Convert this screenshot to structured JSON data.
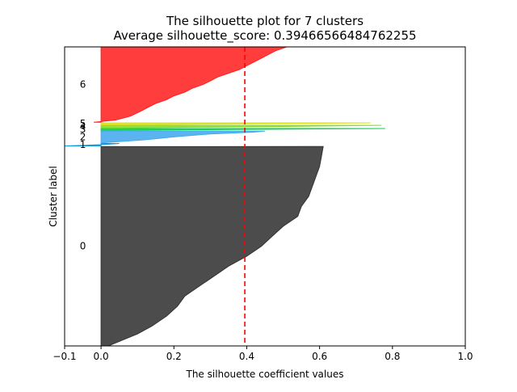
{
  "chart_data": {
    "type": "area",
    "title": "The silhouette plot for 7 clusters",
    "subtitle": "Average silhouette_score: 0.39466566484762255",
    "xlabel": "The silhouette coefficient values",
    "ylabel": "Cluster label",
    "xlim": [
      -0.1,
      1.0
    ],
    "xticks": [
      -0.1,
      0.0,
      0.2,
      0.4,
      0.6,
      0.8,
      1.0
    ],
    "xtick_labels": [
      "−0.1",
      "0.0",
      "0.2",
      "0.4",
      "0.6",
      "0.8",
      "1.0"
    ],
    "ylim": [
      0,
      960
    ],
    "grid": false,
    "average_line": {
      "value": 0.3947,
      "color": "#ff0000",
      "style": "dashed"
    },
    "clusters": [
      {
        "label": "0",
        "color": "#333333",
        "y_start": 0,
        "size": 640,
        "profile": [
          [
            0,
            0.02
          ],
          [
            0.03,
            0.06
          ],
          [
            0.06,
            0.1
          ],
          [
            0.1,
            0.14
          ],
          [
            0.15,
            0.18
          ],
          [
            0.2,
            0.21
          ],
          [
            0.25,
            0.23
          ],
          [
            0.3,
            0.27
          ],
          [
            0.35,
            0.31
          ],
          [
            0.4,
            0.35
          ],
          [
            0.45,
            0.4
          ],
          [
            0.5,
            0.44
          ],
          [
            0.55,
            0.47
          ],
          [
            0.6,
            0.5
          ],
          [
            0.65,
            0.54
          ],
          [
            0.7,
            0.55
          ],
          [
            0.75,
            0.57
          ],
          [
            0.8,
            0.58
          ],
          [
            0.85,
            0.59
          ],
          [
            0.9,
            0.6
          ],
          [
            0.95,
            0.605
          ],
          [
            1.0,
            0.61
          ]
        ]
      },
      {
        "label": "1",
        "color": "#1199dd",
        "y_start": 642,
        "size": 8,
        "profile": [
          [
            0,
            -0.1
          ],
          [
            0.5,
            0.0
          ],
          [
            1.0,
            0.05
          ]
        ]
      },
      {
        "label": "2",
        "color": "#44aaee",
        "y_start": 652,
        "size": 38,
        "profile": [
          [
            0,
            0.0
          ],
          [
            0.25,
            0.12
          ],
          [
            0.5,
            0.2
          ],
          [
            0.75,
            0.3
          ],
          [
            0.9,
            0.42
          ],
          [
            1.0,
            0.45
          ]
        ]
      },
      {
        "label": "3",
        "color": "#11cc55",
        "y_start": 692,
        "size": 6,
        "profile": [
          [
            0,
            0.02
          ],
          [
            0.5,
            0.4
          ],
          [
            1.0,
            0.78
          ]
        ]
      },
      {
        "label": "4",
        "color": "#88dd22",
        "y_start": 700,
        "size": 8,
        "profile": [
          [
            0,
            0.05
          ],
          [
            0.5,
            0.45
          ],
          [
            1.0,
            0.77
          ]
        ]
      },
      {
        "label": "5",
        "color": "#dddd22",
        "y_start": 710,
        "size": 6,
        "profile": [
          [
            0,
            0.06
          ],
          [
            0.5,
            0.4
          ],
          [
            1.0,
            0.74
          ]
        ]
      },
      {
        "label": "6",
        "color": "#ff2222",
        "y_start": 718,
        "size": 242,
        "profile": [
          [
            0,
            -0.02
          ],
          [
            0.03,
            0.04
          ],
          [
            0.08,
            0.08
          ],
          [
            0.15,
            0.11
          ],
          [
            0.2,
            0.13
          ],
          [
            0.25,
            0.15
          ],
          [
            0.3,
            0.18
          ],
          [
            0.35,
            0.2
          ],
          [
            0.4,
            0.23
          ],
          [
            0.45,
            0.25
          ],
          [
            0.5,
            0.28
          ],
          [
            0.55,
            0.3
          ],
          [
            0.6,
            0.32
          ],
          [
            0.65,
            0.35
          ],
          [
            0.7,
            0.38
          ],
          [
            0.75,
            0.4
          ],
          [
            0.8,
            0.42
          ],
          [
            0.85,
            0.44
          ],
          [
            0.9,
            0.46
          ],
          [
            0.95,
            0.48
          ],
          [
            1.0,
            0.51
          ]
        ]
      }
    ]
  }
}
